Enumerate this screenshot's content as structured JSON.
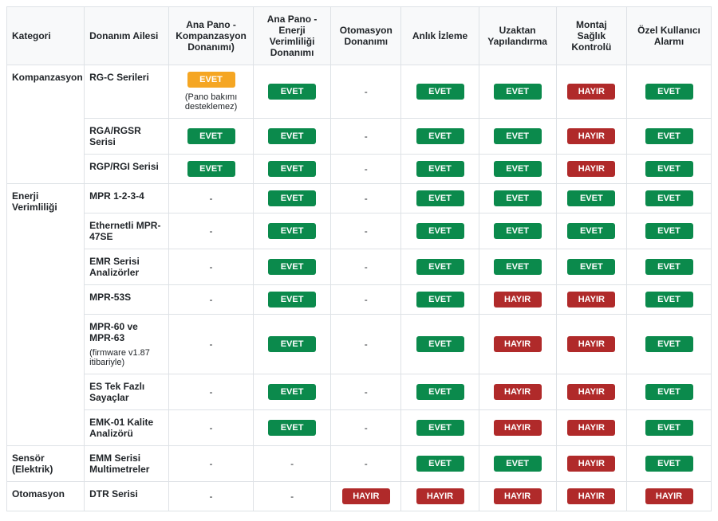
{
  "colors": {
    "green": "#0b8a4c",
    "red": "#b02a2a",
    "orange": "#f5a623",
    "header_bg": "#f8f9fa",
    "border": "#dee2e6",
    "text": "#212529"
  },
  "labels": {
    "yes": "EVET",
    "no": "HAYIR",
    "dash": "-"
  },
  "headers": [
    "Kategori",
    "Donanım Ailesi",
    "Ana Pano - Kompanzasyon Donanımı)",
    "Ana Pano - Enerji Verimliliği Donanımı",
    "Otomasyon Donanımı",
    "Anlık İzleme",
    "Uzaktan Yapılandırma",
    "Montaj Sağlık Kontrolü",
    "Özel Kullanıcı Alarmı"
  ],
  "groups": [
    {
      "category": "Kompanzasyon",
      "rows": [
        {
          "family": "RG-C Serileri",
          "cells": [
            {
              "type": "badge",
              "text": "EVET",
              "color": "#f5a623",
              "note": "(Pano bakımı desteklemez)"
            },
            {
              "type": "badge",
              "text": "EVET",
              "color": "#0b8a4c"
            },
            {
              "type": "dash"
            },
            {
              "type": "badge",
              "text": "EVET",
              "color": "#0b8a4c"
            },
            {
              "type": "badge",
              "text": "EVET",
              "color": "#0b8a4c"
            },
            {
              "type": "badge",
              "text": "HAYIR",
              "color": "#b02a2a"
            },
            {
              "type": "badge",
              "text": "EVET",
              "color": "#0b8a4c"
            }
          ]
        },
        {
          "family": "RGA/RGSR Serisi",
          "cells": [
            {
              "type": "badge",
              "text": "EVET",
              "color": "#0b8a4c"
            },
            {
              "type": "badge",
              "text": "EVET",
              "color": "#0b8a4c"
            },
            {
              "type": "dash"
            },
            {
              "type": "badge",
              "text": "EVET",
              "color": "#0b8a4c"
            },
            {
              "type": "badge",
              "text": "EVET",
              "color": "#0b8a4c"
            },
            {
              "type": "badge",
              "text": "HAYIR",
              "color": "#b02a2a"
            },
            {
              "type": "badge",
              "text": "EVET",
              "color": "#0b8a4c"
            }
          ]
        },
        {
          "family": "RGP/RGI Serisi",
          "cells": [
            {
              "type": "badge",
              "text": "EVET",
              "color": "#0b8a4c"
            },
            {
              "type": "badge",
              "text": "EVET",
              "color": "#0b8a4c"
            },
            {
              "type": "dash"
            },
            {
              "type": "badge",
              "text": "EVET",
              "color": "#0b8a4c"
            },
            {
              "type": "badge",
              "text": "EVET",
              "color": "#0b8a4c"
            },
            {
              "type": "badge",
              "text": "HAYIR",
              "color": "#b02a2a"
            },
            {
              "type": "badge",
              "text": "EVET",
              "color": "#0b8a4c"
            }
          ]
        }
      ]
    },
    {
      "category": "Enerji Verimliliği",
      "rows": [
        {
          "family": "MPR 1-2-3-4",
          "cells": [
            {
              "type": "dash"
            },
            {
              "type": "badge",
              "text": "EVET",
              "color": "#0b8a4c"
            },
            {
              "type": "dash"
            },
            {
              "type": "badge",
              "text": "EVET",
              "color": "#0b8a4c"
            },
            {
              "type": "badge",
              "text": "EVET",
              "color": "#0b8a4c"
            },
            {
              "type": "badge",
              "text": "EVET",
              "color": "#0b8a4c"
            },
            {
              "type": "badge",
              "text": "EVET",
              "color": "#0b8a4c"
            }
          ]
        },
        {
          "family": "Ethernetli MPR-47SE",
          "cells": [
            {
              "type": "dash"
            },
            {
              "type": "badge",
              "text": "EVET",
              "color": "#0b8a4c"
            },
            {
              "type": "dash"
            },
            {
              "type": "badge",
              "text": "EVET",
              "color": "#0b8a4c"
            },
            {
              "type": "badge",
              "text": "EVET",
              "color": "#0b8a4c"
            },
            {
              "type": "badge",
              "text": "EVET",
              "color": "#0b8a4c"
            },
            {
              "type": "badge",
              "text": "EVET",
              "color": "#0b8a4c"
            }
          ]
        },
        {
          "family": "EMR Serisi Analizörler",
          "cells": [
            {
              "type": "dash"
            },
            {
              "type": "badge",
              "text": "EVET",
              "color": "#0b8a4c"
            },
            {
              "type": "dash"
            },
            {
              "type": "badge",
              "text": "EVET",
              "color": "#0b8a4c"
            },
            {
              "type": "badge",
              "text": "EVET",
              "color": "#0b8a4c"
            },
            {
              "type": "badge",
              "text": "EVET",
              "color": "#0b8a4c"
            },
            {
              "type": "badge",
              "text": "EVET",
              "color": "#0b8a4c"
            }
          ]
        },
        {
          "family": "MPR-53S",
          "cells": [
            {
              "type": "dash"
            },
            {
              "type": "badge",
              "text": "EVET",
              "color": "#0b8a4c"
            },
            {
              "type": "dash"
            },
            {
              "type": "badge",
              "text": "EVET",
              "color": "#0b8a4c"
            },
            {
              "type": "badge",
              "text": "HAYIR",
              "color": "#b02a2a"
            },
            {
              "type": "badge",
              "text": "HAYIR",
              "color": "#b02a2a"
            },
            {
              "type": "badge",
              "text": "EVET",
              "color": "#0b8a4c"
            }
          ]
        },
        {
          "family": "MPR-60 ve MPR-63",
          "family_note": "(firmware v1.87 itibariyle)",
          "cells": [
            {
              "type": "dash"
            },
            {
              "type": "badge",
              "text": "EVET",
              "color": "#0b8a4c"
            },
            {
              "type": "dash"
            },
            {
              "type": "badge",
              "text": "EVET",
              "color": "#0b8a4c"
            },
            {
              "type": "badge",
              "text": "HAYIR",
              "color": "#b02a2a"
            },
            {
              "type": "badge",
              "text": "HAYIR",
              "color": "#b02a2a"
            },
            {
              "type": "badge",
              "text": "EVET",
              "color": "#0b8a4c"
            }
          ]
        },
        {
          "family": "ES Tek Fazlı Sayaçlar",
          "cells": [
            {
              "type": "dash"
            },
            {
              "type": "badge",
              "text": "EVET",
              "color": "#0b8a4c"
            },
            {
              "type": "dash"
            },
            {
              "type": "badge",
              "text": "EVET",
              "color": "#0b8a4c"
            },
            {
              "type": "badge",
              "text": "HAYIR",
              "color": "#b02a2a"
            },
            {
              "type": "badge",
              "text": "HAYIR",
              "color": "#b02a2a"
            },
            {
              "type": "badge",
              "text": "EVET",
              "color": "#0b8a4c"
            }
          ]
        },
        {
          "family": "EMK-01 Kalite Analizörü",
          "cells": [
            {
              "type": "dash"
            },
            {
              "type": "badge",
              "text": "EVET",
              "color": "#0b8a4c"
            },
            {
              "type": "dash"
            },
            {
              "type": "badge",
              "text": "EVET",
              "color": "#0b8a4c"
            },
            {
              "type": "badge",
              "text": "HAYIR",
              "color": "#b02a2a"
            },
            {
              "type": "badge",
              "text": "HAYIR",
              "color": "#b02a2a"
            },
            {
              "type": "badge",
              "text": "EVET",
              "color": "#0b8a4c"
            }
          ]
        }
      ]
    },
    {
      "category": "Sensör (Elektrik)",
      "rows": [
        {
          "family": "EMM Serisi Multimetreler",
          "cells": [
            {
              "type": "dash"
            },
            {
              "type": "dash"
            },
            {
              "type": "dash"
            },
            {
              "type": "badge",
              "text": "EVET",
              "color": "#0b8a4c"
            },
            {
              "type": "badge",
              "text": "EVET",
              "color": "#0b8a4c"
            },
            {
              "type": "badge",
              "text": "HAYIR",
              "color": "#b02a2a"
            },
            {
              "type": "badge",
              "text": "EVET",
              "color": "#0b8a4c"
            }
          ]
        }
      ]
    },
    {
      "category": "Otomasyon",
      "rows": [
        {
          "family": "DTR Serisi",
          "cells": [
            {
              "type": "dash"
            },
            {
              "type": "dash"
            },
            {
              "type": "badge",
              "text": "HAYIR",
              "color": "#b02a2a"
            },
            {
              "type": "badge",
              "text": "HAYIR",
              "color": "#b02a2a"
            },
            {
              "type": "badge",
              "text": "HAYIR",
              "color": "#b02a2a"
            },
            {
              "type": "badge",
              "text": "HAYIR",
              "color": "#b02a2a"
            },
            {
              "type": "badge",
              "text": "HAYIR",
              "color": "#b02a2a"
            }
          ]
        }
      ]
    }
  ]
}
